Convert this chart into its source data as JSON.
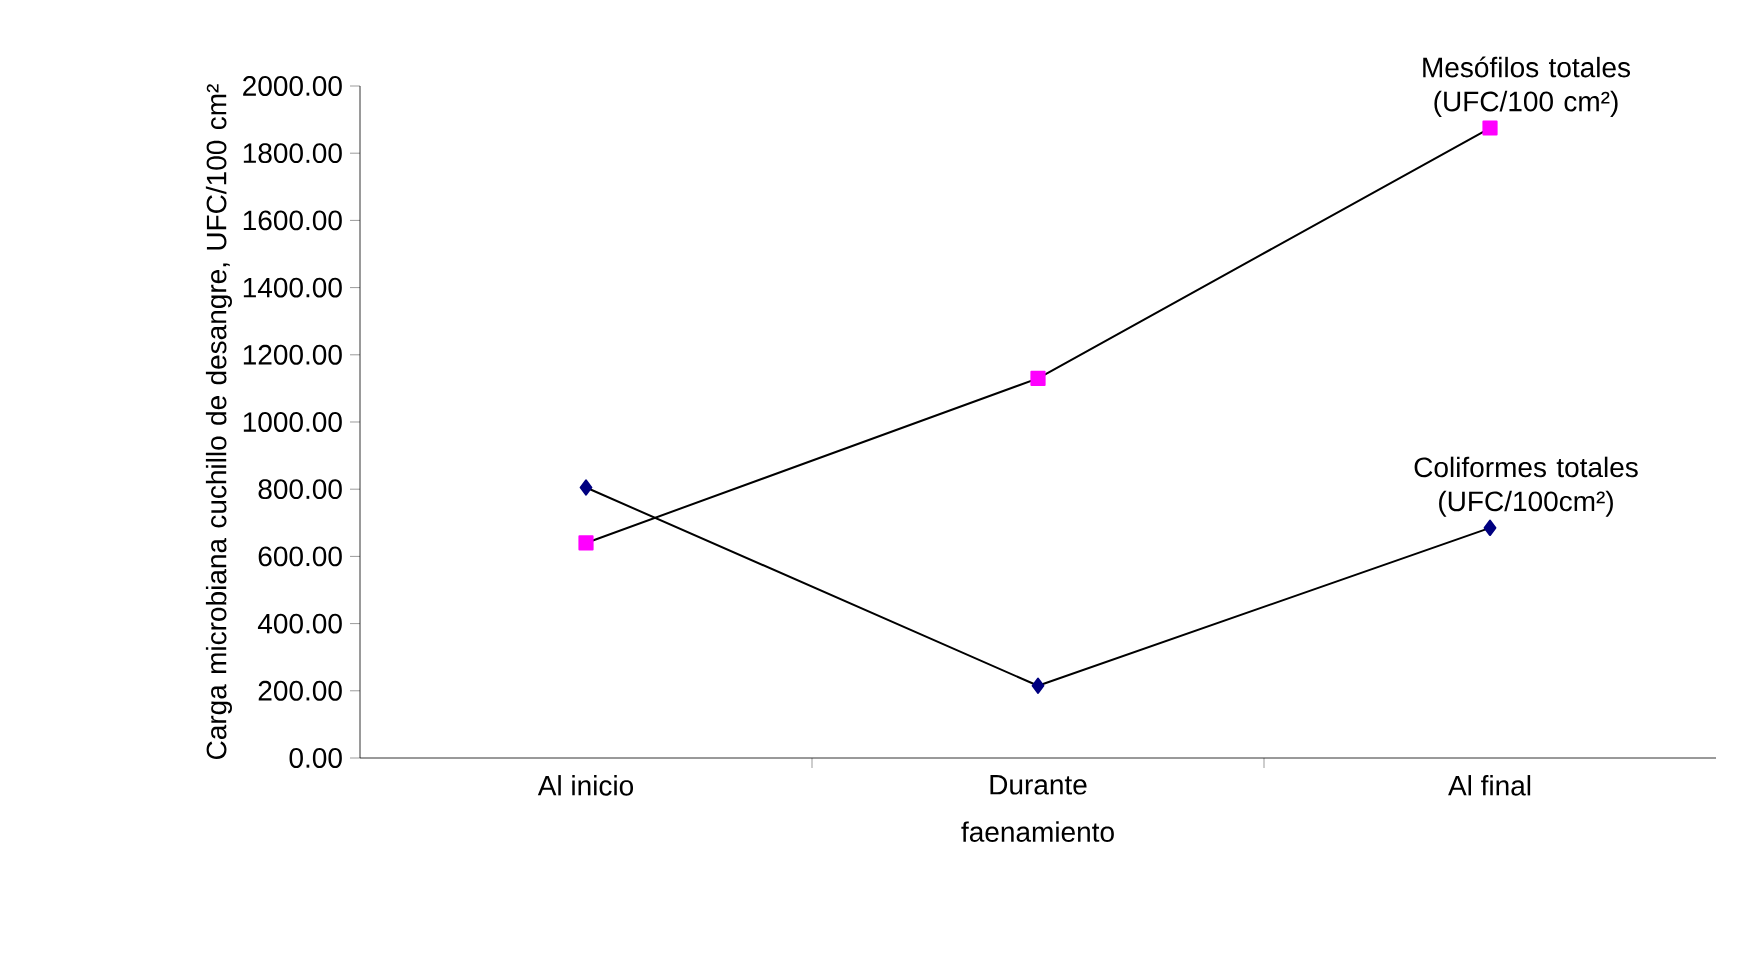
{
  "chart_data": {
    "type": "line",
    "xlabel": "faenamiento",
    "ylabel": "Carga microbiana cuchillo de desangre, UFC/100 cm²",
    "categories": [
      "Al inicio",
      "Durante",
      "Al final"
    ],
    "series": [
      {
        "name": "Mesófilos totales (UFC/100 cm²)",
        "color": "#ff00ff",
        "marker": "square",
        "values": [
          640,
          1130,
          1875
        ]
      },
      {
        "name": "Coliformes totales (UFC/100cm²)",
        "color": "#000080",
        "marker": "diamond",
        "values": [
          805,
          215,
          685
        ]
      }
    ],
    "ylim": [
      0,
      2000
    ],
    "yticks": [
      {
        "value": 0,
        "label": "0.00"
      },
      {
        "value": 200,
        "label": "200.00"
      },
      {
        "value": 400,
        "label": "400.00"
      },
      {
        "value": 600,
        "label": "600.00"
      },
      {
        "value": 800,
        "label": "800.00"
      },
      {
        "value": 1000,
        "label": "1000.00"
      },
      {
        "value": 1200,
        "label": "1200.00"
      },
      {
        "value": 1400,
        "label": "1400.00"
      },
      {
        "value": 1600,
        "label": "1600.00"
      },
      {
        "value": 1800,
        "label": "1800.00"
      },
      {
        "value": 2000,
        "label": "2000.00"
      }
    ],
    "grid": false,
    "line_style": "solid"
  }
}
